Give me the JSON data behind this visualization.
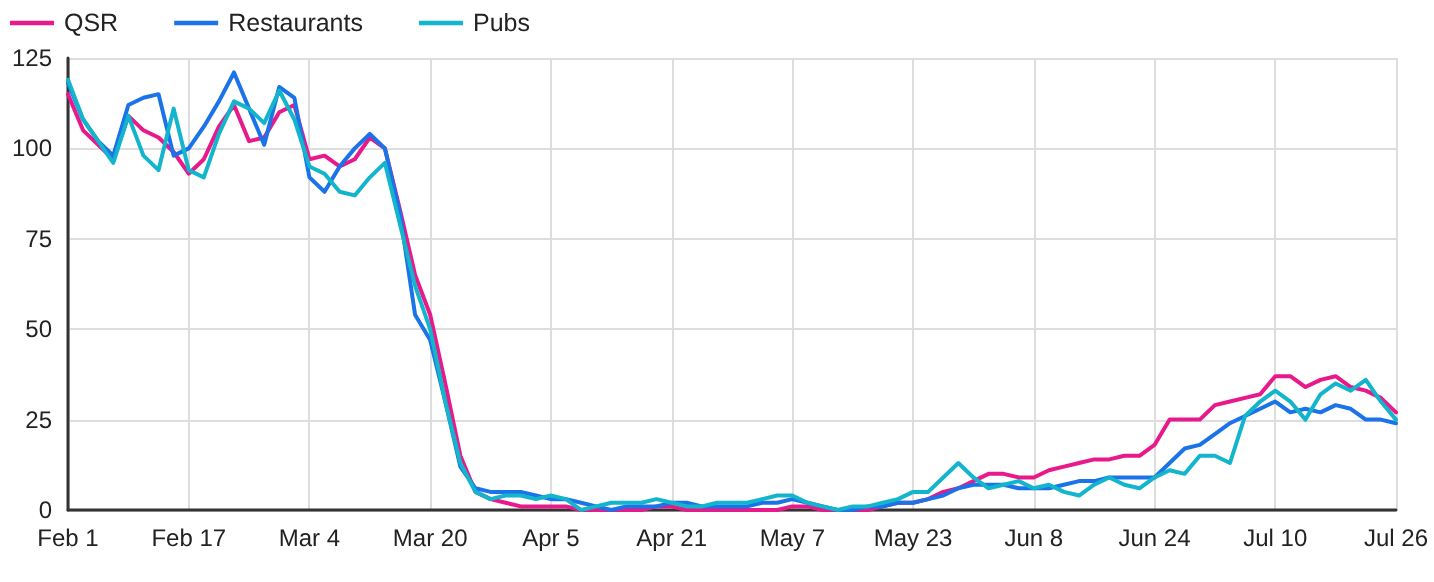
{
  "chart_data": {
    "type": "line",
    "x": [
      "--02-01",
      "--02-03",
      "--02-05",
      "--02-07",
      "--02-09",
      "--02-11",
      "--02-13",
      "--02-15",
      "--02-17",
      "--02-19",
      "--02-21",
      "--02-23",
      "--02-25",
      "--02-27",
      "--02-29",
      "--03-02",
      "--03-04",
      "--03-06",
      "--03-08",
      "--03-10",
      "--03-12",
      "--03-14",
      "--03-16",
      "--03-18",
      "--03-20",
      "--03-22",
      "--03-24",
      "--03-26",
      "--03-28",
      "--03-30",
      "--04-01",
      "--04-03",
      "--04-05",
      "--04-07",
      "--04-09",
      "--04-11",
      "--04-13",
      "--04-15",
      "--04-17",
      "--04-19",
      "--04-21",
      "--04-23",
      "--04-25",
      "--04-27",
      "--04-29",
      "--05-01",
      "--05-03",
      "--05-05",
      "--05-07",
      "--05-09",
      "--05-11",
      "--05-13",
      "--05-15",
      "--05-17",
      "--05-19",
      "--05-21",
      "--05-23",
      "--05-25",
      "--05-27",
      "--05-29",
      "--05-31",
      "--06-02",
      "--06-04",
      "--06-06",
      "--06-08",
      "--06-10",
      "--06-12",
      "--06-14",
      "--06-16",
      "--06-18",
      "--06-20",
      "--06-22",
      "--06-24",
      "--06-26",
      "--06-28",
      "--06-30",
      "--07-02",
      "--07-04",
      "--07-06",
      "--07-08",
      "--07-10",
      "--07-12",
      "--07-14",
      "--07-16",
      "--07-18",
      "--07-20",
      "--07-22",
      "--07-24",
      "--07-26"
    ],
    "series": [
      {
        "name": "QSR",
        "color": "#e8198b",
        "values": [
          115,
          105,
          101,
          97,
          109,
          105,
          103,
          99,
          93,
          97,
          106,
          112,
          102,
          103,
          110,
          112,
          97,
          98,
          95,
          97,
          103,
          100,
          83,
          65,
          54,
          35,
          15,
          5,
          3,
          2,
          1,
          1,
          1,
          1,
          0,
          0,
          0,
          0,
          0,
          1,
          1,
          0,
          0,
          0,
          0,
          0,
          0,
          0,
          1,
          1,
          0,
          0,
          0,
          0,
          1,
          2,
          2,
          3,
          5,
          6,
          8,
          10,
          10,
          9,
          9,
          11,
          12,
          13,
          14,
          14,
          15,
          15,
          18,
          25,
          25,
          25,
          29,
          30,
          31,
          32,
          37,
          37,
          34,
          36,
          37,
          34,
          33,
          31,
          27
        ]
      },
      {
        "name": "Restaurants",
        "color": "#1a73e8",
        "values": [
          118,
          108,
          102,
          98,
          112,
          114,
          115,
          98,
          100,
          106,
          113,
          121,
          111,
          101,
          117,
          114,
          92,
          88,
          95,
          100,
          104,
          100,
          82,
          54,
          47,
          30,
          12,
          6,
          5,
          5,
          5,
          4,
          3,
          3,
          2,
          1,
          0,
          1,
          1,
          1,
          2,
          2,
          1,
          1,
          1,
          1,
          2,
          2,
          3,
          2,
          1,
          0,
          0,
          1,
          1,
          2,
          2,
          3,
          4,
          6,
          7,
          7,
          7,
          6,
          6,
          6,
          7,
          8,
          8,
          9,
          9,
          9,
          9,
          13,
          17,
          18,
          21,
          24,
          26,
          28,
          30,
          27,
          28,
          27,
          29,
          28,
          25,
          25,
          24
        ]
      },
      {
        "name": "Pubs",
        "color": "#12b5cb",
        "values": [
          119,
          108,
          102,
          96,
          109,
          98,
          94,
          111,
          94,
          92,
          104,
          113,
          111,
          107,
          116,
          108,
          95,
          93,
          88,
          87,
          92,
          96,
          79,
          62,
          50,
          30,
          13,
          5,
          3,
          4,
          4,
          3,
          4,
          3,
          0,
          1,
          2,
          2,
          2,
          3,
          2,
          1,
          1,
          2,
          2,
          2,
          3,
          4,
          4,
          2,
          1,
          0,
          1,
          1,
          2,
          3,
          5,
          5,
          9,
          13,
          9,
          6,
          7,
          8,
          6,
          7,
          5,
          4,
          7,
          9,
          7,
          6,
          9,
          11,
          10,
          15,
          15,
          13,
          26,
          30,
          33,
          30,
          25,
          32,
          35,
          33,
          36,
          30,
          25
        ]
      }
    ],
    "xlim": [
      "--02-01",
      "--07-26"
    ],
    "xticks": [
      {
        "value": "--02-01",
        "label": "Feb 1"
      },
      {
        "value": "--02-17",
        "label": "Feb 17"
      },
      {
        "value": "--03-04",
        "label": "Mar 4"
      },
      {
        "value": "--03-20",
        "label": "Mar 20"
      },
      {
        "value": "--04-05",
        "label": "Apr 5"
      },
      {
        "value": "--04-21",
        "label": "Apr 21"
      },
      {
        "value": "--05-07",
        "label": "May 7"
      },
      {
        "value": "--05-23",
        "label": "May 23"
      },
      {
        "value": "--06-08",
        "label": "Jun 8"
      },
      {
        "value": "--06-24",
        "label": "Jun 24"
      },
      {
        "value": "--07-10",
        "label": "Jul 10"
      },
      {
        "value": "--07-26",
        "label": "Jul 26"
      }
    ],
    "ylim": [
      0,
      125
    ],
    "yticks": [
      0,
      25,
      50,
      75,
      100,
      125
    ],
    "grid": true,
    "legend": "top left",
    "marker": "none",
    "line_style": "solid"
  }
}
